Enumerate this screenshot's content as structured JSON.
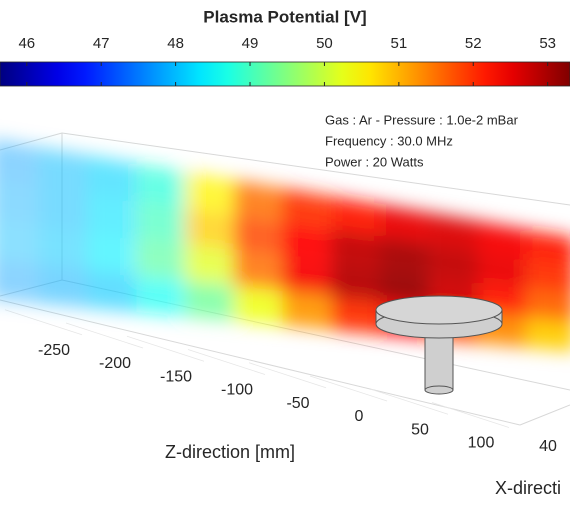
{
  "chart_data": {
    "type": "field3d",
    "title": "Plasma Potential [V]",
    "colormap": "jet",
    "clim": [
      45.64,
      53.3
    ],
    "cticks": [
      46,
      47,
      48,
      49,
      50,
      51,
      52,
      53
    ],
    "annotations": [
      "Gas : Ar - Pressure : 1.0e-2 mBar",
      "Frequency : 30.0 MHz",
      "Power : 20 Watts"
    ],
    "xlabel": "Z-direction [mm]",
    "ylabel": "X-directi",
    "zticks": [
      -250,
      -200,
      -150,
      -100,
      -50,
      0,
      50,
      100
    ],
    "xticks": [
      40
    ],
    "field": {
      "z": [
        -300,
        -262.5,
        -225,
        -187.5,
        -150,
        -112.5,
        -75,
        -37.5,
        0,
        37.5,
        75,
        112.5
      ],
      "values": [
        [
          47.8,
          48.0,
          48.2,
          48.8,
          50.5,
          51.5,
          52.0,
          52.2,
          52.5,
          52.6,
          52.4,
          52.2
        ],
        [
          47.9,
          48.0,
          48.3,
          49.0,
          50.8,
          51.8,
          52.3,
          52.8,
          53.0,
          52.8,
          52.5,
          52.0
        ],
        [
          48.0,
          48.1,
          48.4,
          49.2,
          50.2,
          51.5,
          52.4,
          52.9,
          53.1,
          52.7,
          52.2,
          51.6
        ],
        [
          47.8,
          47.9,
          48.1,
          48.6,
          49.3,
          50.3,
          51.2,
          52.0,
          52.3,
          51.8,
          51.3,
          50.8
        ]
      ]
    }
  }
}
